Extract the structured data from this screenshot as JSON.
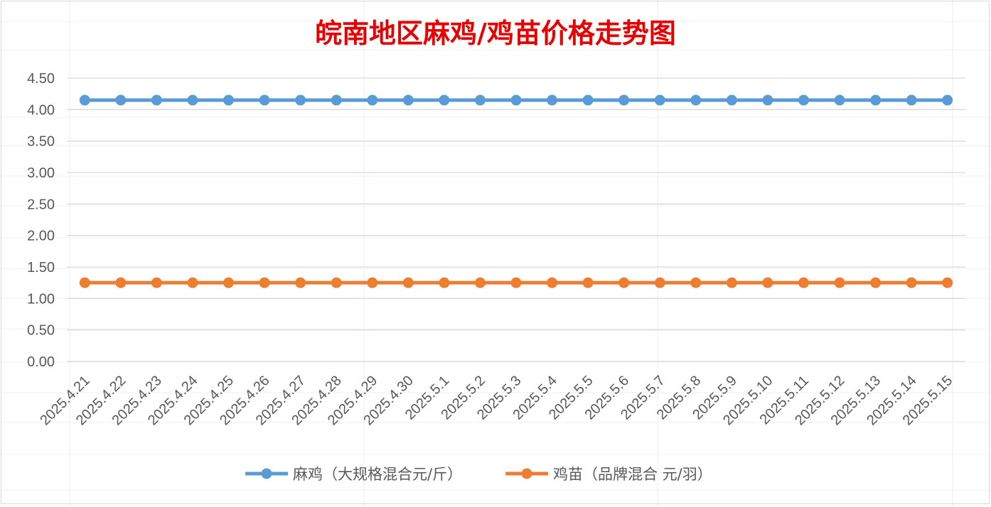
{
  "chart_data": {
    "type": "line",
    "title": "皖南地区麻鸡/鸡苗价格走势图",
    "xlabel": "",
    "ylabel": "",
    "ylim": [
      0,
      4.5
    ],
    "y_ticks": [
      "0.00",
      "0.50",
      "1.00",
      "1.50",
      "2.00",
      "2.50",
      "3.00",
      "3.50",
      "4.00",
      "4.50"
    ],
    "grid": true,
    "legend_position": "bottom",
    "categories": [
      "2025.4.21",
      "2025.4.22",
      "2025.4.23",
      "2025.4.24",
      "2025.4.25",
      "2025.4.26",
      "2025.4.27",
      "2025.4.28",
      "2025.4.29",
      "2025.4.30",
      "2025.5.1",
      "2025.5.2",
      "2025.5.3",
      "2025.5.4",
      "2025.5.5",
      "2025.5.6",
      "2025.5.7",
      "2025.5.8",
      "2025.5.9",
      "2025.5.10",
      "2025.5.11",
      "2025.5.12",
      "2025.5.13",
      "2025.5.14",
      "2025.5.15"
    ],
    "series": [
      {
        "name": "麻鸡（大规格混合元/斤）",
        "color": "#5B9BD5",
        "values": [
          4.15,
          4.15,
          4.15,
          4.15,
          4.15,
          4.15,
          4.15,
          4.15,
          4.15,
          4.15,
          4.15,
          4.15,
          4.15,
          4.15,
          4.15,
          4.15,
          4.15,
          4.15,
          4.15,
          4.15,
          4.15,
          4.15,
          4.15,
          4.15,
          4.15
        ]
      },
      {
        "name": "鸡苗（品牌混合 元/羽）",
        "color": "#ED7D31",
        "values": [
          1.25,
          1.25,
          1.25,
          1.25,
          1.25,
          1.25,
          1.25,
          1.25,
          1.25,
          1.25,
          1.25,
          1.25,
          1.25,
          1.25,
          1.25,
          1.25,
          1.25,
          1.25,
          1.25,
          1.25,
          1.25,
          1.25,
          1.25,
          1.25,
          1.25
        ]
      }
    ],
    "colors": {
      "title": "#E60000",
      "grid": "#D9D9D9",
      "tick_text": "#595959",
      "background": "#FFFFFF"
    }
  }
}
